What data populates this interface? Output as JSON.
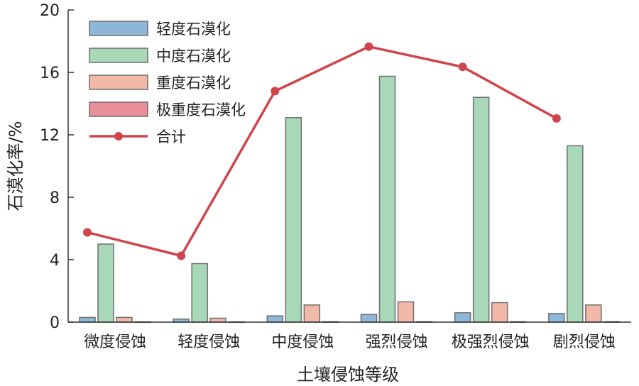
{
  "chart_data": {
    "type": "bar",
    "categories": [
      "微度侵蚀",
      "轻度侵蚀",
      "中度侵蚀",
      "强烈侵蚀",
      "极强烈侵蚀",
      "剧烈侵蚀"
    ],
    "series": [
      {
        "name": "轻度石漠化",
        "kind": "bar",
        "color": "#8db7d9",
        "values": [
          0.3,
          0.2,
          0.4,
          0.5,
          0.6,
          0.55
        ]
      },
      {
        "name": "中度石漠化",
        "kind": "bar",
        "color": "#a8d8b8",
        "values": [
          5.0,
          3.75,
          13.1,
          15.75,
          14.4,
          11.3
        ]
      },
      {
        "name": "重度石漠化",
        "kind": "bar",
        "color": "#f2b8a8",
        "values": [
          0.3,
          0.25,
          1.1,
          1.3,
          1.25,
          1.1
        ]
      },
      {
        "name": "极重度石漠化",
        "kind": "bar",
        "color": "#e98f9a",
        "values": [
          0.02,
          0.02,
          0.03,
          0.03,
          0.03,
          0.03
        ]
      },
      {
        "name": "合计",
        "kind": "line",
        "color": "#d0454b",
        "values": [
          5.75,
          4.25,
          14.8,
          17.65,
          16.35,
          13.05
        ]
      }
    ],
    "xlabel": "土壤侵蚀等级",
    "ylabel": "石漠化率/%",
    "ylim": [
      0,
      20
    ],
    "yticks": [
      0,
      4,
      8,
      12,
      16,
      20
    ],
    "grid": false,
    "legend_position": "top-left"
  }
}
